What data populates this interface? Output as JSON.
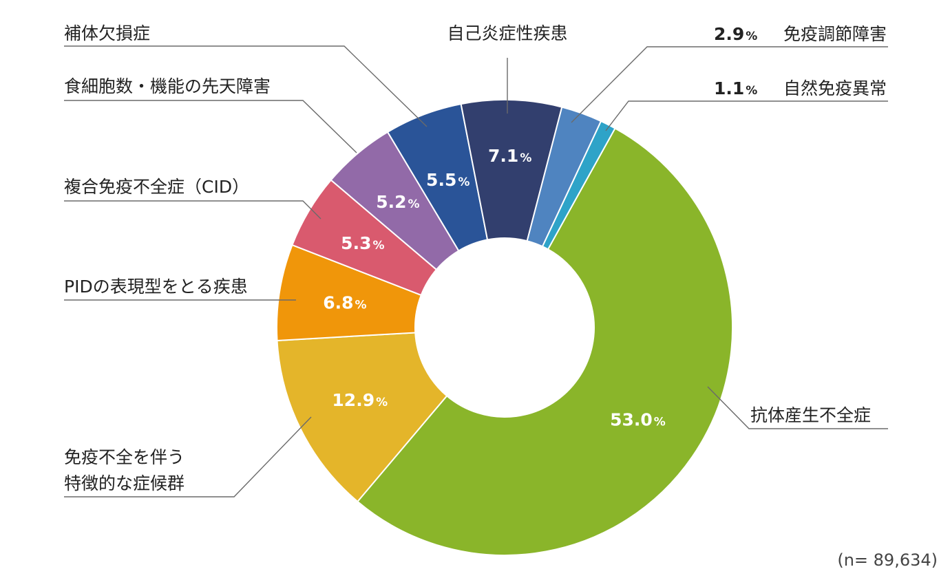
{
  "chart_data": {
    "type": "pie",
    "donut": true,
    "title": "",
    "legend": "none",
    "slices": [
      {
        "label": "抗体産生不全症",
        "value": 53.0,
        "value_text": "53.0",
        "color": "#8ab52a"
      },
      {
        "label": "免疫不全を伴う\n特徴的な症候群",
        "value": 12.9,
        "value_text": "12.9",
        "color": "#e4b52a"
      },
      {
        "label": "PIDの表現型をとる疾患",
        "value": 6.8,
        "value_text": "6.8",
        "color": "#f0960a"
      },
      {
        "label": "複合免疫不全症（CID）",
        "value": 5.3,
        "value_text": "5.3",
        "color": "#d95a6e"
      },
      {
        "label": "食細胞数・機能の先天障害",
        "value": 5.2,
        "value_text": "5.2",
        "color": "#926aa8"
      },
      {
        "label": "補体欠損症",
        "value": 5.5,
        "value_text": "5.5",
        "color": "#2a5498"
      },
      {
        "label": "自己炎症性疾患",
        "value": 7.1,
        "value_text": "7.1",
        "color": "#323f6e"
      },
      {
        "label": "免疫調節障害",
        "value": 2.9,
        "value_text": "2.9",
        "color": "#4f84c0"
      },
      {
        "label": "自然免疫異常",
        "value": 1.1,
        "value_text": "1.1",
        "color": "#2ea3c8"
      }
    ],
    "percent_symbol": "%",
    "note": "(n= 89,634)"
  }
}
